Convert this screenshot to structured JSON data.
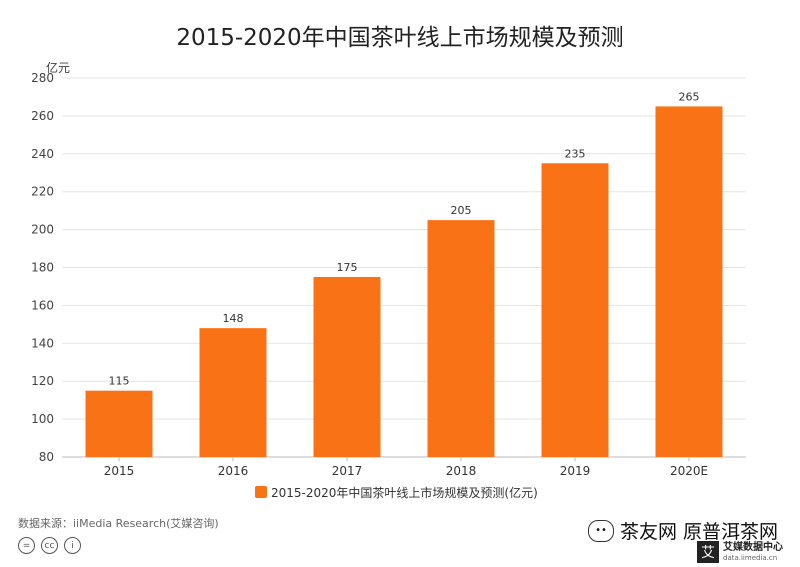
{
  "chart_data": {
    "type": "bar",
    "title": "2015-2020年中国茶叶线上市场规模及预测",
    "ylabel": "亿元",
    "xlabel": "",
    "categories": [
      "2015",
      "2016",
      "2017",
      "2018",
      "2019",
      "2020E"
    ],
    "series": [
      {
        "name": "2015-2020年中国茶叶线上市场规模及预测(亿元)",
        "values": [
          115,
          148,
          175,
          205,
          235,
          265
        ]
      }
    ],
    "ylim": [
      80,
      280
    ],
    "yticks": [
      80,
      100,
      120,
      140,
      160,
      180,
      200,
      220,
      240,
      260,
      280
    ],
    "grid": true,
    "legend": "bottom-center",
    "bar_color": "#F97316"
  },
  "footer": {
    "source": "数据来源：iiMedia Research(艾媒咨询)",
    "cc_icons": [
      "cc-by-icon",
      "cc-icon",
      "person-icon"
    ],
    "watermark": "茶友网 原普洱茶网",
    "logo_mark": "艾",
    "logo_title": "艾媒数据中心",
    "logo_url": "data.iimedia.cn"
  }
}
